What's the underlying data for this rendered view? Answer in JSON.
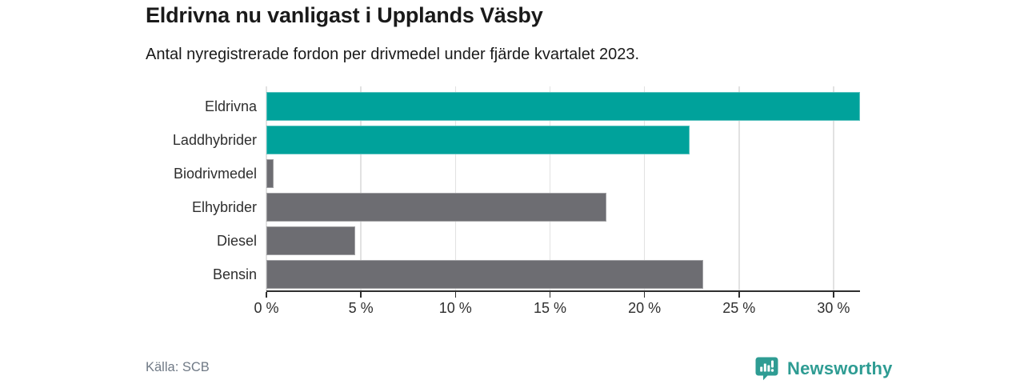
{
  "header": {
    "title": "Eldrivna nu vanligast i Upplands Väsby",
    "subtitle": "Antal nyregistrerade fordon per drivmedel under fjärde kvartalet 2023."
  },
  "chart_data": {
    "type": "bar",
    "orientation": "horizontal",
    "title": "Eldrivna nu vanligast i Upplands Väsby",
    "subtitle": "Antal nyregistrerade fordon per drivmedel under fjärde kvartalet 2023.",
    "categories": [
      "Eldrivna",
      "Laddhybrider",
      "Biodrivmedel",
      "Elhybrider",
      "Diesel",
      "Bensin"
    ],
    "values": [
      31.4,
      22.4,
      0.4,
      18.0,
      4.7,
      23.1
    ],
    "unit": "%",
    "bar_colors": [
      "#00a29b",
      "#00a29b",
      "#6d6d72",
      "#6d6d72",
      "#6d6d72",
      "#6d6d72"
    ],
    "xlim": [
      0,
      31.4
    ],
    "xticks": [
      0,
      5,
      10,
      15,
      20,
      25,
      30
    ],
    "xtick_labels": [
      "0 %",
      "5 %",
      "10 %",
      "15 %",
      "20 %",
      "25 %",
      "30 %"
    ],
    "grid": true,
    "legend": "none"
  },
  "footer": {
    "source": "Källa: SCB",
    "brand": "Newsworthy"
  },
  "colors": {
    "accent_teal": "#00a29b",
    "bar_gray": "#6d6d72",
    "brand_teal": "#2e9c93",
    "gridline": "#e2e2e2",
    "axis": "#2e2e2e"
  }
}
